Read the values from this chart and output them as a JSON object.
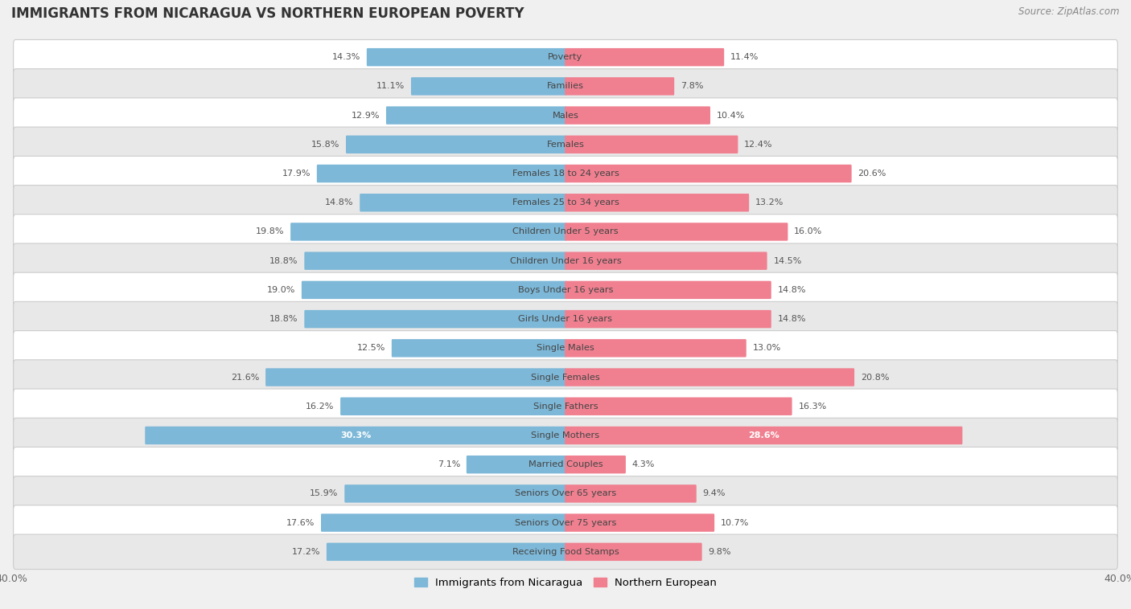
{
  "title": "IMMIGRANTS FROM NICARAGUA VS NORTHERN EUROPEAN POVERTY",
  "source": "Source: ZipAtlas.com",
  "categories": [
    "Poverty",
    "Families",
    "Males",
    "Females",
    "Females 18 to 24 years",
    "Females 25 to 34 years",
    "Children Under 5 years",
    "Children Under 16 years",
    "Boys Under 16 years",
    "Girls Under 16 years",
    "Single Males",
    "Single Females",
    "Single Fathers",
    "Single Mothers",
    "Married Couples",
    "Seniors Over 65 years",
    "Seniors Over 75 years",
    "Receiving Food Stamps"
  ],
  "nicaragua_values": [
    14.3,
    11.1,
    12.9,
    15.8,
    17.9,
    14.8,
    19.8,
    18.8,
    19.0,
    18.8,
    12.5,
    21.6,
    16.2,
    30.3,
    7.1,
    15.9,
    17.6,
    17.2
  ],
  "northern_values": [
    11.4,
    7.8,
    10.4,
    12.4,
    20.6,
    13.2,
    16.0,
    14.5,
    14.8,
    14.8,
    13.0,
    20.8,
    16.3,
    28.6,
    4.3,
    9.4,
    10.7,
    9.8
  ],
  "nicaragua_color": "#7db8d8",
  "northern_color": "#f08090",
  "background_color": "#f0f0f0",
  "row_color_light": "#ffffff",
  "row_color_dark": "#e8e8e8",
  "xlim": 40.0,
  "legend_labels": [
    "Immigrants from Nicaragua",
    "Northern European"
  ]
}
